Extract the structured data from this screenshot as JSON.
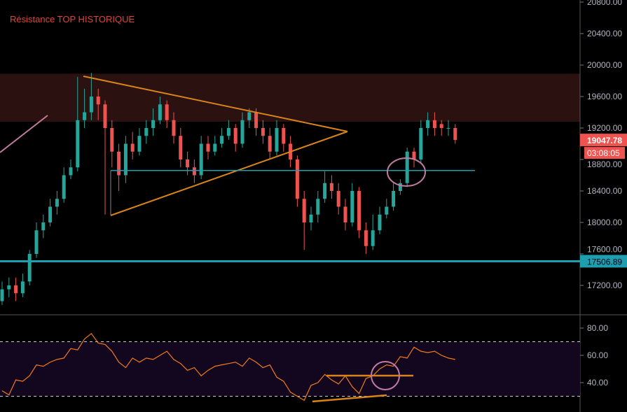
{
  "chart_data": [
    {
      "type": "candlestick",
      "annotation_text": "Résistance TOP HISTORIQUE",
      "ylim": [
        17000,
        20850
      ],
      "y_ticks": [
        "20800.00",
        "20400.00",
        "20000.00",
        "19600.00",
        "19200.00",
        "18800.00",
        "18400.00",
        "18000.00",
        "17600.00",
        "17200.00"
      ],
      "y_tick_values": [
        20800,
        20400,
        20000,
        19600,
        19200,
        18800,
        18400,
        18000,
        17600,
        17200
      ],
      "last_price": "19047.78",
      "last_price_value": 19047.78,
      "countdown": "03:08:05",
      "support_level": "17506.89",
      "support_value": 17506.89,
      "resistance_zone": [
        19280,
        19890
      ],
      "neckline_value": 18660,
      "colors": {
        "up": "#26a69a",
        "down": "#ef5350",
        "zone": "#2b1210",
        "support": "#1e9fb0",
        "triangle": "#d9841a",
        "ellipse": "#c27ba0",
        "label": "#e0443a"
      },
      "candles": {
        "open": [
          17000,
          17150,
          17200,
          17100,
          17250,
          17600,
          17900,
          18000,
          18200,
          18300,
          18600,
          18700,
          19300,
          19400,
          19600,
          19500,
          19200,
          18900,
          18600,
          19000,
          18900,
          19100,
          19200,
          19300,
          19500,
          19300,
          19100,
          18800,
          18700,
          18600,
          19000,
          18900,
          19000,
          19100,
          19200,
          19000,
          19300,
          19400,
          19200,
          19100,
          18900,
          19200,
          19000,
          18800,
          18300,
          18000,
          18100,
          18300,
          18500,
          18400,
          18200,
          18000,
          18400,
          17900,
          17700,
          17900,
          18100,
          18200,
          18400,
          18500,
          18900,
          18800,
          19200,
          19300,
          19250,
          19200,
          19200
        ],
        "high": [
          17250,
          17300,
          17300,
          17350,
          17650,
          18000,
          18100,
          18300,
          18400,
          18700,
          18800,
          19850,
          19700,
          19900,
          19700,
          19550,
          19300,
          19000,
          19100,
          19150,
          19200,
          19300,
          19450,
          19600,
          19550,
          19400,
          19200,
          18900,
          18800,
          19100,
          19100,
          19100,
          19200,
          19300,
          19250,
          19400,
          19450,
          19450,
          19300,
          19200,
          19300,
          19250,
          19100,
          18850,
          18400,
          18200,
          18400,
          18650,
          18600,
          18500,
          18300,
          18500,
          18450,
          18000,
          18100,
          18200,
          18300,
          18500,
          18550,
          18950,
          18950,
          19300,
          19400,
          19400,
          19300,
          19300,
          19250
        ],
        "low": [
          16950,
          17050,
          17000,
          17050,
          17200,
          17550,
          17800,
          17950,
          18100,
          18250,
          18550,
          18650,
          19200,
          19300,
          19300,
          18100,
          18700,
          18400,
          18500,
          18800,
          18850,
          19000,
          19100,
          19250,
          19200,
          19000,
          18700,
          18600,
          18500,
          18550,
          18800,
          18850,
          18950,
          19050,
          18900,
          18950,
          19200,
          19100,
          19000,
          18800,
          18850,
          18900,
          18700,
          18200,
          17650,
          17900,
          18000,
          18250,
          18300,
          18100,
          17900,
          17950,
          17800,
          17600,
          17650,
          17850,
          18050,
          18150,
          18350,
          18450,
          18700,
          18750,
          19100,
          19100,
          19100,
          19100,
          19000
        ],
        "close": [
          17150,
          17200,
          17100,
          17250,
          17600,
          17900,
          18000,
          18200,
          18300,
          18600,
          18700,
          19300,
          19400,
          19600,
          19500,
          19200,
          18900,
          18600,
          19000,
          18900,
          19100,
          19200,
          19300,
          19500,
          19300,
          19100,
          18800,
          18700,
          18600,
          19000,
          18900,
          19000,
          19100,
          19200,
          19000,
          19300,
          19400,
          19200,
          19100,
          18900,
          19200,
          19000,
          18800,
          18300,
          18000,
          18100,
          18300,
          18500,
          18400,
          18200,
          18000,
          18400,
          17900,
          17700,
          17900,
          18100,
          18200,
          18400,
          18500,
          18900,
          18800,
          19200,
          19300,
          19200,
          19200,
          19200,
          19047.78
        ]
      }
    },
    {
      "type": "line",
      "indicator": "RSI",
      "ylim": [
        20,
        90
      ],
      "y_ticks": [
        "80.00",
        "60.00",
        "40.00"
      ],
      "y_tick_values": [
        80,
        60,
        40
      ],
      "bands": [
        30,
        70
      ],
      "colors": {
        "line": "#f07a1a",
        "band": "#13071f",
        "trend": "#d9841a",
        "ellipse": "#c27ba0"
      },
      "values": [
        34,
        31,
        42,
        41,
        45,
        53,
        52,
        55,
        57,
        58,
        65,
        64,
        72,
        76,
        69,
        68,
        63,
        55,
        51,
        58,
        55,
        58,
        57,
        60,
        63,
        57,
        54,
        49,
        51,
        45,
        49,
        52,
        53,
        54,
        55,
        52,
        58,
        55,
        51,
        53,
        44,
        41,
        33,
        30,
        27,
        38,
        40,
        46,
        42,
        39,
        45,
        37,
        32,
        43,
        45,
        50,
        53,
        52,
        59,
        58,
        66,
        63,
        62,
        63,
        60,
        58,
        57
      ]
    }
  ]
}
